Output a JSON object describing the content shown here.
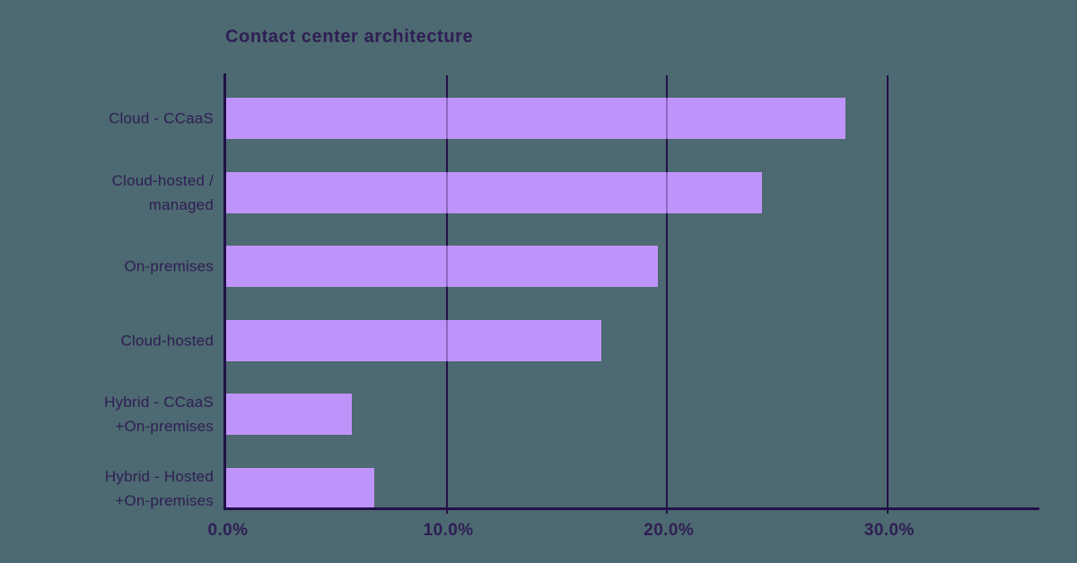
{
  "chart_data": {
    "type": "bar",
    "orientation": "horizontal",
    "title": "Contact center architecture",
    "categories": [
      "Cloud - CCaaS",
      "Cloud-hosted /\nmanaged",
      "On-premises",
      "Cloud-hosted",
      "Hybrid - CCaaS\n+On-premises",
      "Hybrid - Hosted\n+On-premises"
    ],
    "values": [
      28.1,
      24.3,
      19.6,
      17.0,
      5.7,
      6.7
    ],
    "value_unit": "%",
    "xlabel": "",
    "ylabel": "",
    "x_ticks": [
      {
        "label": "0.0%",
        "value": 0
      },
      {
        "label": "10.0%",
        "value": 10
      },
      {
        "label": "20.0%",
        "value": 20
      },
      {
        "label": "30.0%",
        "value": 30
      }
    ],
    "xlim": [
      0,
      36.9
    ],
    "grid": "vertical-gridlines-at-ticks",
    "legend": "none",
    "colors": {
      "background": "#4D6971",
      "bar": "#BF94FA",
      "axis": "#221048",
      "text": "#2E1E54"
    }
  }
}
